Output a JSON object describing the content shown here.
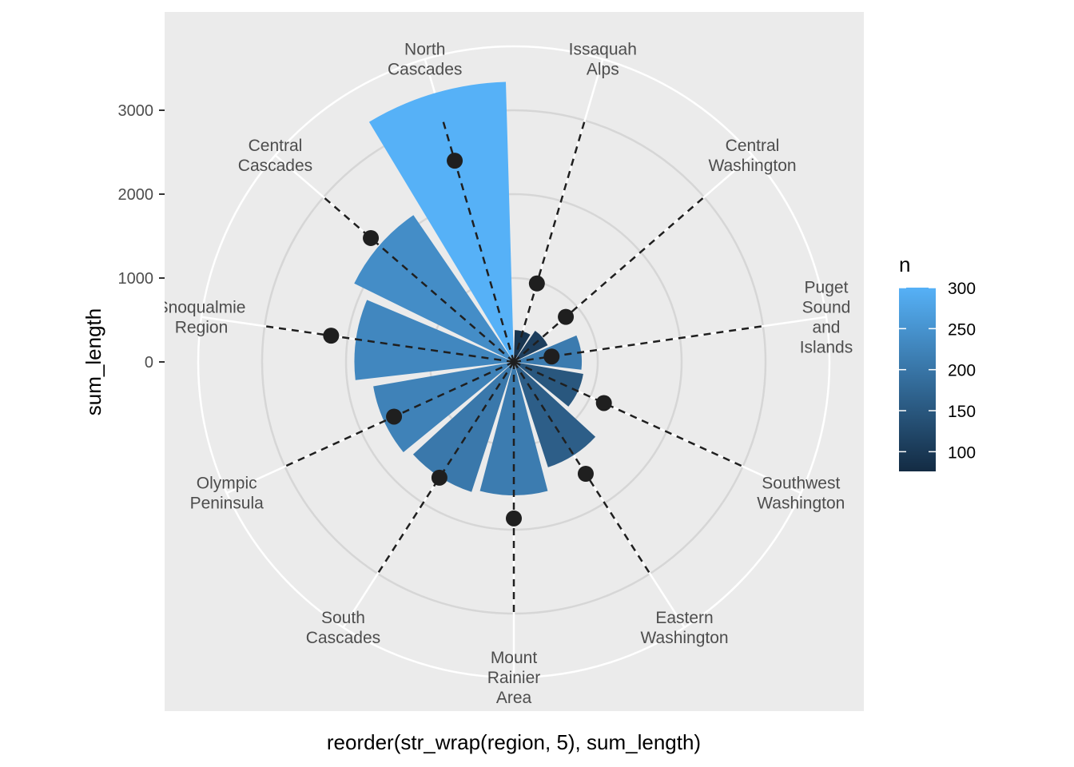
{
  "chart_data": {
    "type": "bar",
    "coord": "polar",
    "xlabel": "reorder(str_wrap(region, 5), sum_length)",
    "ylabel": "sum_length",
    "yticks": [
      0,
      1000,
      2000,
      3000
    ],
    "grid": true,
    "legend_position": "right",
    "categories": [
      "Issaquah\nAlps",
      "Central\nWashington",
      "Puget\nSound\nand\nIslands",
      "Southwest\nWashington",
      "Eastern\nWashington",
      "Mount\nRainier\nArea",
      "South\nCascades",
      "Olympic\nPeninsula",
      "Snoqualmie\nRegion",
      "Central\nCascades",
      "North\nCascades"
    ],
    "bar_values": [
      380,
      450,
      810,
      840,
      1320,
      1590,
      1630,
      1700,
      1900,
      2120,
      3340
    ],
    "fill_n": [
      92,
      108,
      210,
      150,
      162,
      212,
      205,
      222,
      230,
      240,
      300
    ],
    "point_values": [
      975,
      820,
      455,
      1180,
      1585,
      1865,
      1640,
      1570,
      2200,
      2255,
      2500
    ],
    "segment_end": 3000,
    "legend": {
      "title": "n",
      "ticks": [
        300,
        250,
        200,
        150,
        100
      ],
      "limits": [
        76,
        300
      ],
      "low_color": "#132B43",
      "high_color": "#56B1F7"
    },
    "colors": {
      "panel": "#EBEBEB",
      "grid_white": "#FFFFFF",
      "ring_gray": "#D6D6D6",
      "point": "#1F1F1F"
    }
  }
}
